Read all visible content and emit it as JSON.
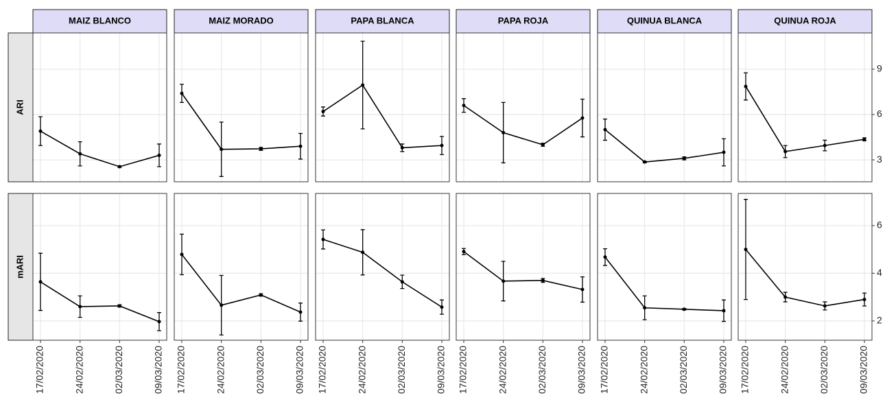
{
  "chart_data": {
    "type": "line",
    "x": [
      "17/02/2020",
      "24/02/2020",
      "02/03/2020",
      "09/03/2020"
    ],
    "columns": [
      "MAIZ BLANCO",
      "MAIZ MORADO",
      "PAPA BLANCA",
      "PAPA ROJA",
      "QUINUA BLANCA",
      "QUINUA ROJA"
    ],
    "color": "#000000",
    "grid": true,
    "rows": [
      {
        "name": "ARI",
        "ylim": [
          1.55,
          11.4
        ],
        "yticks": [
          3,
          6,
          9
        ],
        "panels": [
          {
            "values": [
              4.9,
              3.4,
              2.55,
              3.3
            ],
            "errors": [
              0.95,
              0.8,
              0.05,
              0.75
            ]
          },
          {
            "values": [
              7.4,
              3.7,
              3.73,
              3.9
            ],
            "errors": [
              0.6,
              1.8,
              0.1,
              0.85
            ]
          },
          {
            "values": [
              6.2,
              7.95,
              3.8,
              3.95
            ],
            "errors": [
              0.3,
              2.9,
              0.25,
              0.6
            ]
          },
          {
            "values": [
              6.6,
              4.8,
              4.0,
              5.77
            ],
            "errors": [
              0.45,
              2.0,
              0.1,
              1.25
            ]
          },
          {
            "values": [
              5.0,
              2.86,
              3.1,
              3.5
            ],
            "errors": [
              0.7,
              0.05,
              0.1,
              0.9
            ]
          },
          {
            "values": [
              7.86,
              3.55,
              3.95,
              4.36
            ],
            "errors": [
              0.9,
              0.4,
              0.35,
              0.1
            ]
          }
        ]
      },
      {
        "name": "mARI",
        "ylim": [
          1.19,
          7.35
        ],
        "yticks": [
          2,
          4,
          6
        ],
        "panels": [
          {
            "values": [
              3.64,
              2.6,
              2.63,
              1.97
            ],
            "errors": [
              1.2,
              0.45,
              0.05,
              0.38
            ]
          },
          {
            "values": [
              4.79,
              2.66,
              3.09,
              2.37
            ],
            "errors": [
              0.85,
              1.25,
              0.05,
              0.38
            ]
          },
          {
            "values": [
              5.42,
              4.88,
              3.64,
              2.58
            ],
            "errors": [
              0.4,
              0.95,
              0.28,
              0.3
            ]
          },
          {
            "values": [
              4.91,
              3.67,
              3.7,
              3.32
            ],
            "errors": [
              0.13,
              0.83,
              0.08,
              0.53
            ]
          },
          {
            "values": [
              4.68,
              2.55,
              2.49,
              2.43
            ],
            "errors": [
              0.35,
              0.5,
              0.03,
              0.45
            ]
          },
          {
            "values": [
              5.0,
              3.0,
              2.63,
              2.9
            ],
            "errors": [
              2.1,
              0.2,
              0.17,
              0.27
            ]
          }
        ]
      }
    ]
  }
}
